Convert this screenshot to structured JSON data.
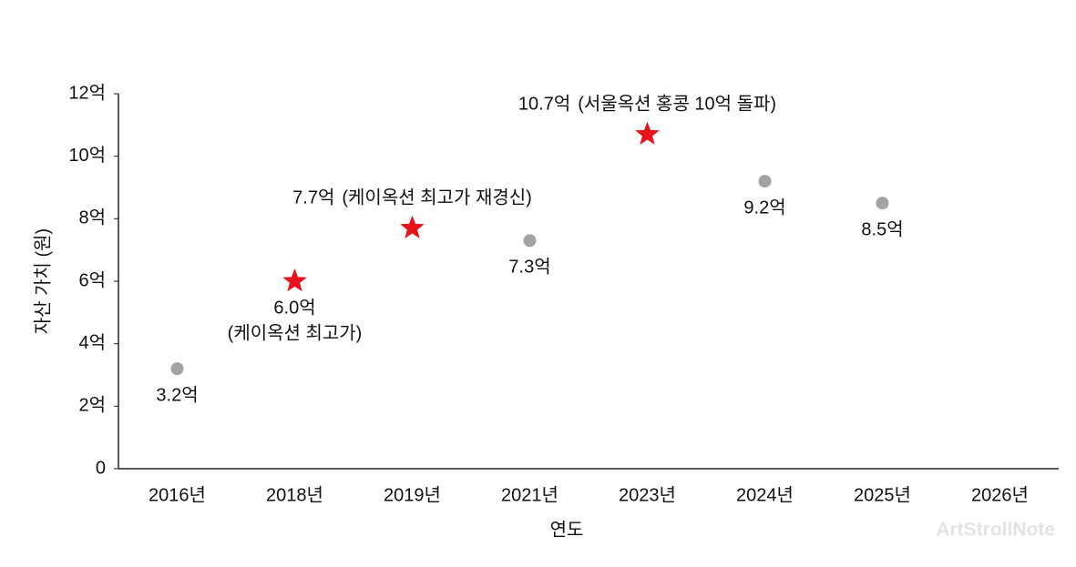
{
  "chart_data": {
    "type": "scatter",
    "categories": [
      "2016년",
      "2018년",
      "2019년",
      "2021년",
      "2023년",
      "2024년",
      "2025년",
      "2026년"
    ],
    "values": [
      3.2,
      6.0,
      7.7,
      7.3,
      10.7,
      9.2,
      8.5,
      null
    ],
    "value_labels": [
      "3.2억",
      "6.0억",
      "7.7억",
      "7.3억",
      "10.7억",
      "9.2억",
      "8.5억",
      null
    ],
    "annotations": [
      null,
      "(케이옥션 최고가)",
      "(케이옥션 최고가 재경신)",
      null,
      "(서울옥션 홍콩 10억 돌파)",
      null,
      null,
      null
    ],
    "markers": [
      "circle",
      "star",
      "star",
      "circle",
      "star",
      "circle",
      "circle",
      null
    ],
    "marker_colors": {
      "circle": "#a3a3a3",
      "star": "#e8141c"
    },
    "ylim": [
      0,
      12
    ],
    "yticks": [
      0,
      {
        "value": 2,
        "label": "2억"
      },
      {
        "value": 4,
        "label": "4억"
      },
      {
        "value": 6,
        "label": "6억"
      },
      {
        "value": 8,
        "label": "8억"
      },
      {
        "value": 10,
        "label": "10억"
      },
      {
        "value": 12,
        "label": "12억"
      }
    ],
    "ylabel": "자산 가치 (원)",
    "xlabel": "연도",
    "grid": false,
    "watermark": "ArtStrollNote"
  }
}
